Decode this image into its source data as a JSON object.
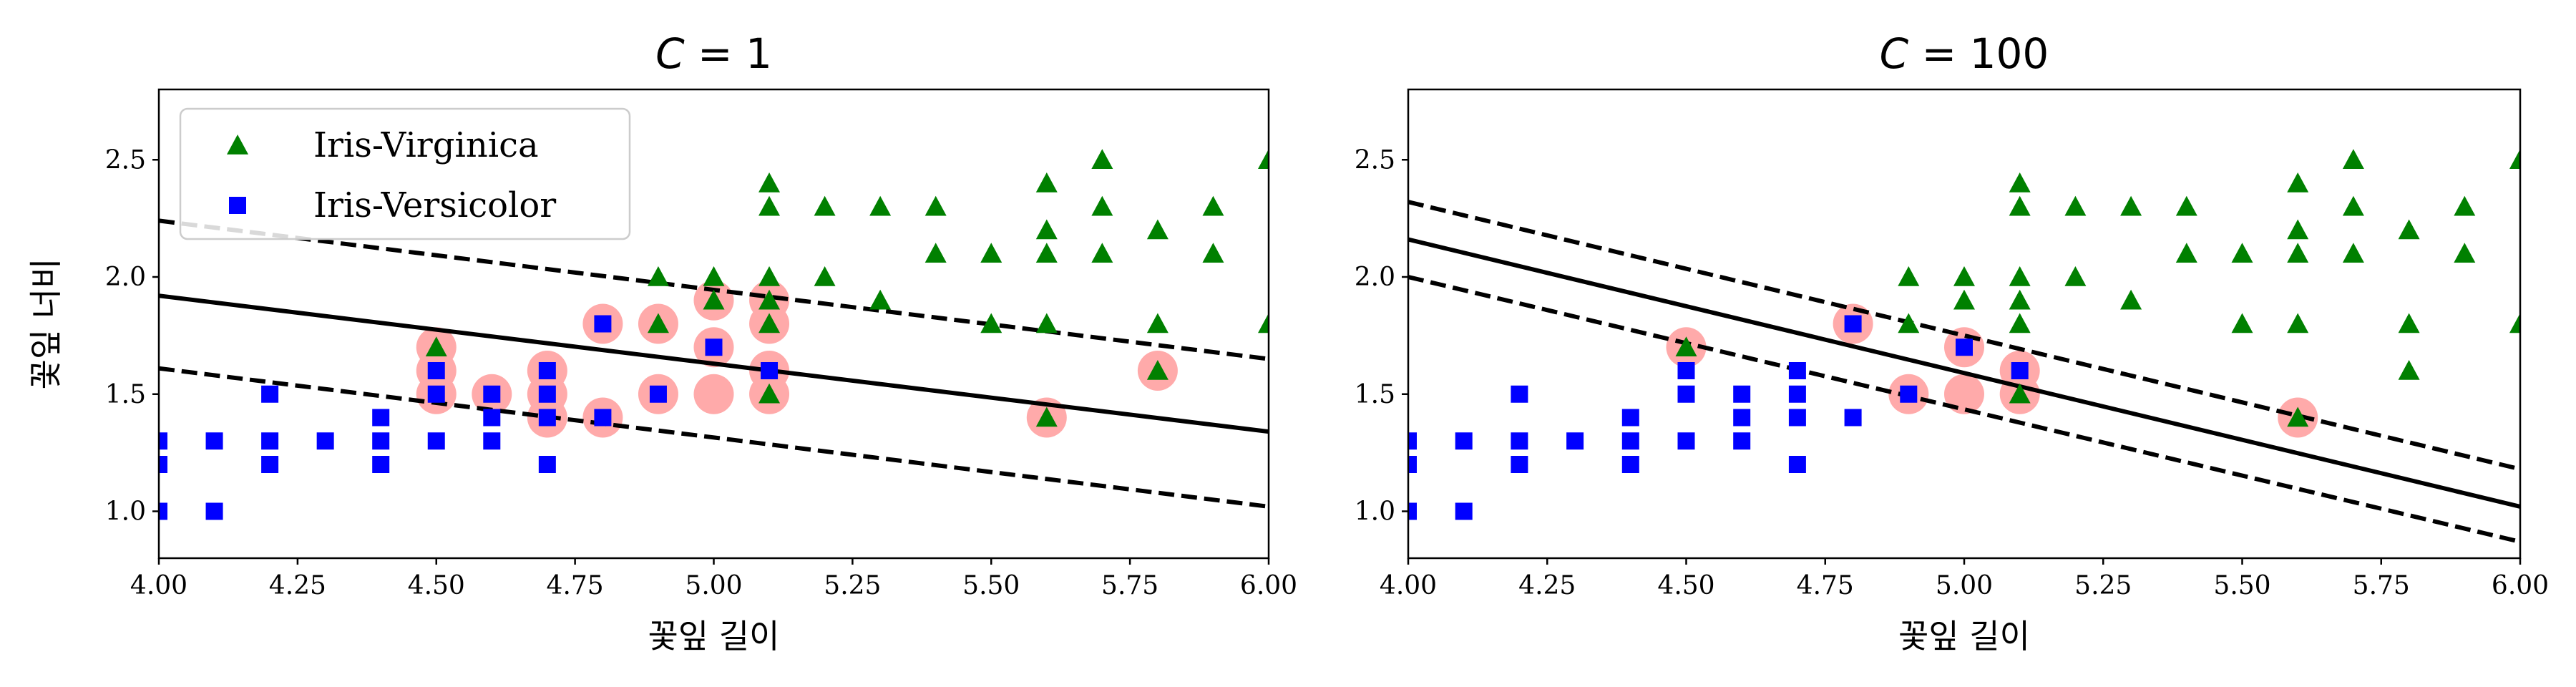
{
  "chart_data": [
    {
      "type": "scatter",
      "title": "C = 1",
      "title_var": "C",
      "title_rest": " = 1",
      "xlabel": "꽃잎 길이",
      "ylabel": "꽃잎 너비",
      "xlim": [
        4.0,
        6.0
      ],
      "ylim": [
        0.8,
        2.8
      ],
      "xticks": [
        "4.00",
        "4.25",
        "4.50",
        "4.75",
        "5.00",
        "5.25",
        "5.50",
        "5.75",
        "6.00"
      ],
      "yticks": [
        "1.0",
        "1.5",
        "2.0",
        "2.5"
      ],
      "legend": {
        "placement": "top-left",
        "entries": [
          {
            "label": "Iris-Virginica",
            "marker": "triangle",
            "color": "#008000"
          },
          {
            "label": "Iris-Versicolor",
            "marker": "square",
            "color": "#0000ff"
          }
        ]
      },
      "boundary": {
        "x": [
          4.0,
          6.0
        ],
        "y": [
          1.92,
          1.34
        ]
      },
      "margin_upper": {
        "x": [
          4.0,
          6.0
        ],
        "y": [
          2.24,
          1.65
        ]
      },
      "margin_lower": {
        "x": [
          4.0,
          6.0
        ],
        "y": [
          1.61,
          1.02
        ]
      },
      "support_vectors": [
        [
          4.5,
          1.7
        ],
        [
          4.5,
          1.6
        ],
        [
          4.5,
          1.5
        ],
        [
          4.6,
          1.5
        ],
        [
          4.7,
          1.6
        ],
        [
          4.7,
          1.5
        ],
        [
          4.7,
          1.4
        ],
        [
          4.8,
          1.8
        ],
        [
          4.8,
          1.4
        ],
        [
          4.9,
          1.8
        ],
        [
          4.9,
          1.5
        ],
        [
          5.0,
          1.9
        ],
        [
          5.0,
          1.7
        ],
        [
          5.0,
          1.5
        ],
        [
          5.1,
          1.9
        ],
        [
          5.1,
          1.8
        ],
        [
          5.1,
          1.6
        ],
        [
          5.1,
          1.5
        ],
        [
          5.6,
          1.4
        ],
        [
          5.8,
          1.6
        ]
      ],
      "series": [
        {
          "name": "Iris-Virginica",
          "marker": "triangle",
          "color": "#008000",
          "points": [
            [
              4.5,
              1.7
            ],
            [
              4.9,
              2.0
            ],
            [
              4.9,
              1.8
            ],
            [
              5.0,
              2.0
            ],
            [
              5.0,
              1.9
            ],
            [
              5.1,
              2.4
            ],
            [
              5.1,
              2.3
            ],
            [
              5.1,
              2.0
            ],
            [
              5.1,
              1.9
            ],
            [
              5.1,
              1.8
            ],
            [
              5.1,
              1.5
            ],
            [
              5.2,
              2.3
            ],
            [
              5.2,
              2.0
            ],
            [
              5.3,
              2.3
            ],
            [
              5.3,
              1.9
            ],
            [
              5.4,
              2.3
            ],
            [
              5.4,
              2.1
            ],
            [
              5.5,
              2.1
            ],
            [
              5.5,
              1.8
            ],
            [
              5.6,
              2.4
            ],
            [
              5.6,
              2.2
            ],
            [
              5.6,
              2.1
            ],
            [
              5.6,
              1.8
            ],
            [
              5.6,
              1.4
            ],
            [
              5.7,
              2.5
            ],
            [
              5.7,
              2.3
            ],
            [
              5.7,
              2.1
            ],
            [
              5.8,
              2.2
            ],
            [
              5.8,
              1.8
            ],
            [
              5.8,
              1.6
            ],
            [
              5.9,
              2.3
            ],
            [
              5.9,
              2.1
            ],
            [
              6.0,
              2.5
            ],
            [
              6.0,
              1.8
            ]
          ]
        },
        {
          "name": "Iris-Versicolor",
          "marker": "square",
          "color": "#0000ff",
          "points": [
            [
              4.0,
              1.3
            ],
            [
              4.0,
              1.2
            ],
            [
              4.0,
              1.0
            ],
            [
              4.1,
              1.3
            ],
            [
              4.1,
              1.0
            ],
            [
              4.2,
              1.5
            ],
            [
              4.2,
              1.3
            ],
            [
              4.2,
              1.2
            ],
            [
              4.3,
              1.3
            ],
            [
              4.4,
              1.4
            ],
            [
              4.4,
              1.3
            ],
            [
              4.4,
              1.2
            ],
            [
              4.5,
              1.6
            ],
            [
              4.5,
              1.5
            ],
            [
              4.5,
              1.3
            ],
            [
              4.6,
              1.5
            ],
            [
              4.6,
              1.4
            ],
            [
              4.6,
              1.3
            ],
            [
              4.7,
              1.6
            ],
            [
              4.7,
              1.5
            ],
            [
              4.7,
              1.4
            ],
            [
              4.7,
              1.2
            ],
            [
              4.8,
              1.8
            ],
            [
              4.8,
              1.4
            ],
            [
              4.9,
              1.5
            ],
            [
              5.0,
              1.7
            ],
            [
              5.1,
              1.6
            ]
          ]
        }
      ]
    },
    {
      "type": "scatter",
      "title": "C = 100",
      "title_var": "C",
      "title_rest": " = 100",
      "xlabel": "꽃잎 길이",
      "ylabel": "",
      "xlim": [
        4.0,
        6.0
      ],
      "ylim": [
        0.8,
        2.8
      ],
      "xticks": [
        "4.00",
        "4.25",
        "4.50",
        "4.75",
        "5.00",
        "5.25",
        "5.50",
        "5.75",
        "6.00"
      ],
      "yticks": [
        "1.0",
        "1.5",
        "2.0",
        "2.5"
      ],
      "boundary": {
        "x": [
          4.0,
          6.0
        ],
        "y": [
          2.16,
          1.02
        ]
      },
      "margin_upper": {
        "x": [
          4.0,
          6.0
        ],
        "y": [
          2.32,
          1.18
        ]
      },
      "margin_lower": {
        "x": [
          4.0,
          6.0
        ],
        "y": [
          2.0,
          0.87
        ]
      },
      "support_vectors": [
        [
          4.5,
          1.7
        ],
        [
          4.8,
          1.8
        ],
        [
          4.9,
          1.5
        ],
        [
          5.0,
          1.7
        ],
        [
          5.0,
          1.5
        ],
        [
          5.1,
          1.6
        ],
        [
          5.1,
          1.5
        ],
        [
          5.6,
          1.4
        ]
      ],
      "series": [
        {
          "name": "Iris-Virginica",
          "marker": "triangle",
          "color": "#008000",
          "points": [
            [
              4.5,
              1.7
            ],
            [
              4.9,
              2.0
            ],
            [
              4.9,
              1.8
            ],
            [
              5.0,
              2.0
            ],
            [
              5.0,
              1.9
            ],
            [
              5.1,
              2.4
            ],
            [
              5.1,
              2.3
            ],
            [
              5.1,
              2.0
            ],
            [
              5.1,
              1.9
            ],
            [
              5.1,
              1.8
            ],
            [
              5.1,
              1.5
            ],
            [
              5.2,
              2.3
            ],
            [
              5.2,
              2.0
            ],
            [
              5.3,
              2.3
            ],
            [
              5.3,
              1.9
            ],
            [
              5.4,
              2.3
            ],
            [
              5.4,
              2.1
            ],
            [
              5.5,
              2.1
            ],
            [
              5.5,
              1.8
            ],
            [
              5.6,
              2.4
            ],
            [
              5.6,
              2.2
            ],
            [
              5.6,
              2.1
            ],
            [
              5.6,
              1.8
            ],
            [
              5.6,
              1.4
            ],
            [
              5.7,
              2.5
            ],
            [
              5.7,
              2.3
            ],
            [
              5.7,
              2.1
            ],
            [
              5.8,
              2.2
            ],
            [
              5.8,
              1.8
            ],
            [
              5.8,
              1.6
            ],
            [
              5.9,
              2.3
            ],
            [
              5.9,
              2.1
            ],
            [
              6.0,
              2.5
            ],
            [
              6.0,
              1.8
            ]
          ]
        },
        {
          "name": "Iris-Versicolor",
          "marker": "square",
          "color": "#0000ff",
          "points": [
            [
              4.0,
              1.3
            ],
            [
              4.0,
              1.2
            ],
            [
              4.0,
              1.0
            ],
            [
              4.1,
              1.3
            ],
            [
              4.1,
              1.0
            ],
            [
              4.2,
              1.5
            ],
            [
              4.2,
              1.3
            ],
            [
              4.2,
              1.2
            ],
            [
              4.3,
              1.3
            ],
            [
              4.4,
              1.4
            ],
            [
              4.4,
              1.3
            ],
            [
              4.4,
              1.2
            ],
            [
              4.5,
              1.6
            ],
            [
              4.5,
              1.5
            ],
            [
              4.5,
              1.3
            ],
            [
              4.6,
              1.5
            ],
            [
              4.6,
              1.4
            ],
            [
              4.6,
              1.3
            ],
            [
              4.7,
              1.6
            ],
            [
              4.7,
              1.5
            ],
            [
              4.7,
              1.4
            ],
            [
              4.7,
              1.2
            ],
            [
              4.8,
              1.8
            ],
            [
              4.8,
              1.4
            ],
            [
              4.9,
              1.5
            ],
            [
              5.0,
              1.7
            ],
            [
              5.1,
              1.6
            ]
          ]
        }
      ]
    }
  ]
}
